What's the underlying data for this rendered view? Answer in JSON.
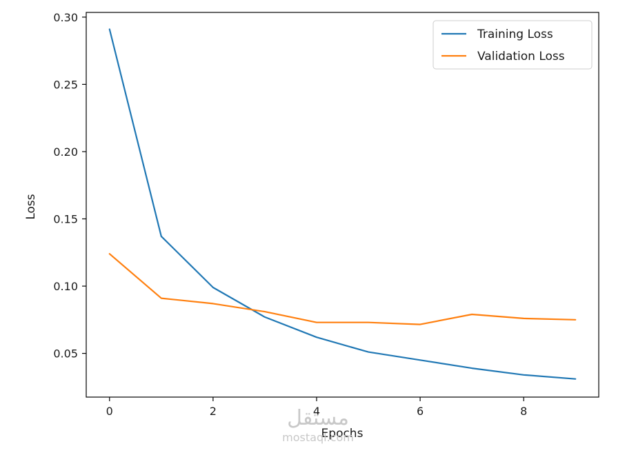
{
  "chart_data": {
    "type": "line",
    "title": "",
    "xlabel": "Epochs",
    "ylabel": "Loss",
    "x": [
      0,
      1,
      2,
      3,
      4,
      5,
      6,
      7,
      8,
      9
    ],
    "series": [
      {
        "name": "Training Loss",
        "color": "#1f77b4",
        "values": [
          0.291,
          0.137,
          0.099,
          0.077,
          0.062,
          0.051,
          0.045,
          0.039,
          0.034,
          0.031
        ]
      },
      {
        "name": "Validation Loss",
        "color": "#ff7f0e",
        "values": [
          0.124,
          0.091,
          0.087,
          0.081,
          0.073,
          0.073,
          0.0715,
          0.079,
          0.076,
          0.075
        ]
      }
    ],
    "xlim": [
      -0.45,
      9.45
    ],
    "ylim": [
      0.0175,
      0.3035
    ],
    "xticks": [
      0,
      2,
      4,
      6,
      8
    ],
    "xtick_labels": [
      "0",
      "2",
      "4",
      "6",
      "8"
    ],
    "yticks": [
      0.05,
      0.1,
      0.15,
      0.2,
      0.25,
      0.3
    ],
    "ytick_labels": [
      "0.05",
      "0.10",
      "0.15",
      "0.20",
      "0.25",
      "0.30"
    ],
    "grid": false,
    "legend_position": "top-right"
  },
  "watermark": {
    "arabic": "مستقل",
    "latin": "mostaql.com"
  }
}
